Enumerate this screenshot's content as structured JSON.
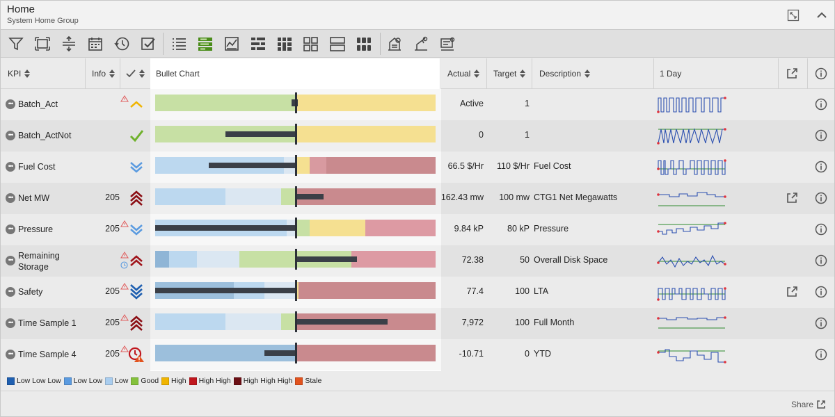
{
  "header": {
    "title": "Home",
    "subtitle": "System Home Group"
  },
  "toolbar": {
    "icons": [
      "filter-icon",
      "fit-icon",
      "expand-rows-icon",
      "calendar-icon",
      "history-icon",
      "check-box-icon",
      "list-view-icon",
      "bullet-view-icon",
      "chart-view-icon",
      "grid-view-1-icon",
      "grid-view-2-icon",
      "tile-view-1-icon",
      "tile-view-2-icon",
      "tile-view-3-icon",
      "settings-icon-1",
      "settings-icon-2",
      "settings-icon-3"
    ]
  },
  "columns": {
    "kpi": "KPI",
    "info": "Info",
    "bullet": "Bullet Chart",
    "actual": "Actual",
    "target": "Target",
    "description": "Description",
    "sparkline": "1 Day"
  },
  "colors": {
    "lowlowlow": "#1f5fb0",
    "lowlow": "#5b9be0",
    "low": "#a9cdef",
    "good": "#84c13c",
    "high": "#f0b400",
    "highhigh": "#c0161d",
    "highhighhigh": "#6b0f14",
    "stale": "#e2531e"
  },
  "rows": [
    {
      "name": "Batch_Act",
      "info": "",
      "warn": true,
      "status": "high-up",
      "actual": "Active",
      "target": "1",
      "desc": "",
      "launch": false,
      "bar": {
        "segs": [
          [
            0,
            0.5,
            "#c7e0a4"
          ],
          [
            0.5,
            1,
            "#f5e091"
          ]
        ],
        "target": 0.5,
        "actual": [
          0.49,
          0.51
        ],
        "actualMarker": true
      },
      "spark": "square"
    },
    {
      "name": "Batch_ActNot",
      "info": "",
      "warn": false,
      "status": "good",
      "actual": "0",
      "target": "1",
      "desc": "",
      "launch": false,
      "bar": {
        "segs": [
          [
            0,
            0.5,
            "#c7e0a4"
          ],
          [
            0.5,
            1,
            "#f5e091"
          ]
        ],
        "target": 0.5,
        "actual": [
          0.25,
          0.5
        ]
      },
      "spark": "zigzag"
    },
    {
      "name": "Fuel Cost",
      "info": "",
      "warn": false,
      "status": "low-down",
      "actual": "66.5 $/Hr",
      "target": "110 $/Hr",
      "desc": "Fuel Cost",
      "launch": false,
      "bar": {
        "segs": [
          [
            0,
            0.46,
            "#bcd8ef"
          ],
          [
            0.46,
            0.5,
            "#dbe7f2"
          ],
          [
            0.5,
            0.55,
            "#f5e091"
          ],
          [
            0.55,
            0.61,
            "#d89aa0"
          ],
          [
            0.61,
            1,
            "#c98a8e"
          ]
        ],
        "target": 0.5,
        "actual": [
          0.19,
          0.5
        ]
      },
      "spark": "square2"
    },
    {
      "name": "Net MW",
      "info": "205",
      "warn": false,
      "status": "hh-up",
      "actual": "162.43 mw",
      "target": "100 mw",
      "desc": "CTG1 Net Megawatts",
      "launch": true,
      "bar": {
        "segs": [
          [
            0,
            0.25,
            "#bcd8ef"
          ],
          [
            0.25,
            0.45,
            "#dbe7f2"
          ],
          [
            0.45,
            0.5,
            "#c7e0a4"
          ],
          [
            0.5,
            1,
            "#c98a8e"
          ]
        ],
        "target": 0.5,
        "actual": [
          0.5,
          0.6
        ]
      },
      "spark": "flat"
    },
    {
      "name": "Pressure",
      "info": "205",
      "warn": true,
      "status": "low-down",
      "actual": "9.84 kP",
      "target": "80 kP",
      "desc": "Pressure",
      "launch": false,
      "bar": {
        "segs": [
          [
            0,
            0.47,
            "#bcd8ef"
          ],
          [
            0.47,
            0.5,
            "#dbe7f2"
          ],
          [
            0.5,
            0.55,
            "#c7e0a4"
          ],
          [
            0.55,
            0.75,
            "#f5e091"
          ],
          [
            0.75,
            1,
            "#dd9aa3"
          ]
        ],
        "target": 0.5,
        "actual": [
          0,
          0.5
        ]
      },
      "spark": "step-up"
    },
    {
      "name": "Remaining\nStorage",
      "info": "",
      "warn": true,
      "clock": true,
      "status": "hh-up-single",
      "actual": "72.38",
      "target": "50",
      "desc": "Overall Disk Space",
      "launch": false,
      "bar": {
        "segs": [
          [
            0,
            0.05,
            "#8fb5d6"
          ],
          [
            0.05,
            0.15,
            "#bcd8ef"
          ],
          [
            0.15,
            0.3,
            "#dbe7f2"
          ],
          [
            0.3,
            0.5,
            "#c7e0a4"
          ],
          [
            0.5,
            0.7,
            "#c7e0a4"
          ],
          [
            0.7,
            1,
            "#dd9aa3"
          ]
        ],
        "target": 0.5,
        "actual": [
          0.5,
          0.72
        ]
      },
      "spark": "noisy"
    },
    {
      "name": "Safety",
      "info": "205",
      "warn": true,
      "status": "lll-down",
      "actual": "77.4",
      "target": "100",
      "desc": "LTA",
      "launch": true,
      "bar": {
        "segs": [
          [
            0,
            0.28,
            "#9cbfdc"
          ],
          [
            0.28,
            0.39,
            "#bcd8ef"
          ],
          [
            0.39,
            0.5,
            "#dbe7f2"
          ],
          [
            0.5,
            0.51,
            "#f5e091"
          ],
          [
            0.51,
            1,
            "#c98a8e"
          ]
        ],
        "target": 0.5,
        "actual": [
          0,
          0.5
        ]
      },
      "spark": "square3"
    },
    {
      "name": "Time Sample 1",
      "info": "205",
      "warn": true,
      "status": "hh-up",
      "actual": "7,972",
      "target": "100",
      "desc": "Full Month",
      "launch": false,
      "bar": {
        "segs": [
          [
            0,
            0.25,
            "#bcd8ef"
          ],
          [
            0.25,
            0.45,
            "#dbe7f2"
          ],
          [
            0.45,
            0.5,
            "#c7e0a4"
          ],
          [
            0.5,
            1,
            "#c98a8e"
          ]
        ],
        "target": 0.5,
        "actual": [
          0.5,
          0.83
        ]
      },
      "spark": "flat2"
    },
    {
      "name": "Time Sample 4",
      "info": "205",
      "warn": true,
      "status": "stale",
      "actual": "-10.71",
      "target": "0",
      "desc": "YTD",
      "launch": false,
      "bar": {
        "segs": [
          [
            0,
            0.5,
            "#9cbfdc"
          ],
          [
            0.5,
            1,
            "#c98a8e"
          ]
        ],
        "target": 0.5,
        "actual": [
          0.39,
          0.5
        ]
      },
      "spark": "dip"
    }
  ],
  "legend": [
    {
      "label": "Low Low Low",
      "color": "#1f5fb0"
    },
    {
      "label": "Low Low",
      "color": "#5b9be0"
    },
    {
      "label": "Low",
      "color": "#a9cdef"
    },
    {
      "label": "Good",
      "color": "#84c13c"
    },
    {
      "label": "High",
      "color": "#f0b400"
    },
    {
      "label": "High High",
      "color": "#c0161d"
    },
    {
      "label": "High High High",
      "color": "#6b0f14"
    },
    {
      "label": "Stale",
      "color": "#e2531e"
    }
  ],
  "footer": {
    "share": "Share"
  }
}
